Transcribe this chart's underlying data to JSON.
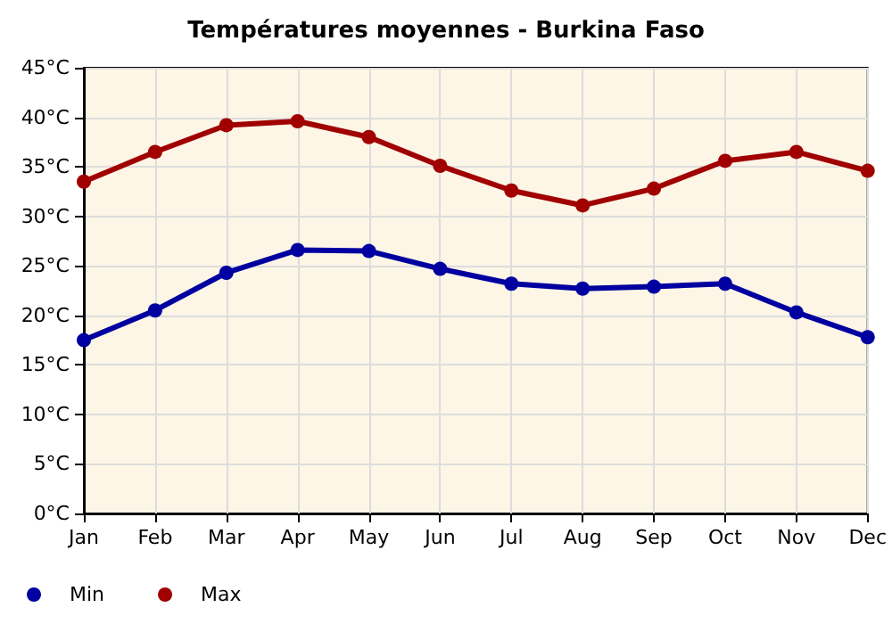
{
  "chart_data": {
    "type": "line",
    "title": "Températures moyennes - Burkina Faso",
    "categories": [
      "Jan",
      "Feb",
      "Mar",
      "Apr",
      "May",
      "Jun",
      "Jul",
      "Aug",
      "Sep",
      "Oct",
      "Nov",
      "Dec"
    ],
    "series": [
      {
        "name": "Min",
        "color": "#0000a0",
        "values": [
          17.5,
          20.5,
          24.3,
          26.6,
          26.5,
          24.7,
          23.2,
          22.7,
          22.9,
          23.2,
          20.3,
          17.8
        ]
      },
      {
        "name": "Max",
        "color": "#a00000",
        "values": [
          33.5,
          36.5,
          39.2,
          39.6,
          38.0,
          35.1,
          32.6,
          31.1,
          32.8,
          35.6,
          36.5,
          34.6
        ]
      }
    ],
    "ylim": [
      0,
      45
    ],
    "yticks": [
      {
        "value": 0,
        "label": "0°C"
      },
      {
        "value": 5,
        "label": "5°C"
      },
      {
        "value": 10,
        "label": "10°C"
      },
      {
        "value": 15,
        "label": "15°C"
      },
      {
        "value": 20,
        "label": "20°C"
      },
      {
        "value": 25,
        "label": "25°C"
      },
      {
        "value": 30,
        "label": "30°C"
      },
      {
        "value": 35,
        "label": "35°C"
      },
      {
        "value": 40,
        "label": "40°C"
      },
      {
        "value": 45,
        "label": "45°C"
      }
    ],
    "grid": true,
    "legend": "bottom left",
    "marker": "circle",
    "line_style": "solid"
  }
}
